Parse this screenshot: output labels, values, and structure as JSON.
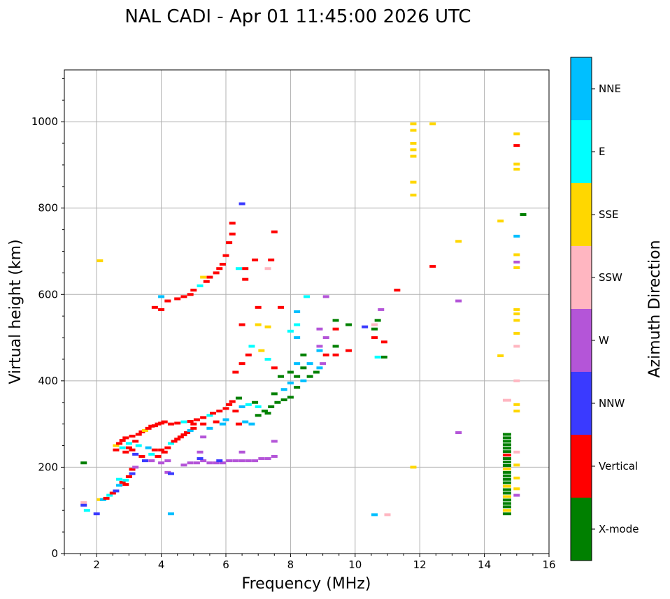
{
  "chart_data": {
    "type": "scatter",
    "title": "NAL CADI - Apr 01 11:45:00 2026 UTC",
    "xlabel": "Frequency (MHz)",
    "ylabel": "Virtual height (km)",
    "xlim": [
      1,
      16
    ],
    "ylim": [
      0,
      1120
    ],
    "xticks": [
      2,
      4,
      6,
      8,
      10,
      12,
      14,
      16
    ],
    "yticks": [
      0,
      200,
      400,
      600,
      800,
      1000
    ],
    "grid": true,
    "colorbar": {
      "label": "Azimuth Direction",
      "categories": [
        {
          "name": "X-mode",
          "color": "#008000"
        },
        {
          "name": "Vertical",
          "color": "#ff0000"
        },
        {
          "name": "NNW",
          "color": "#3a3aff"
        },
        {
          "name": "W",
          "color": "#b455d8"
        },
        {
          "name": "SSW",
          "color": "#ffb6c1"
        },
        {
          "name": "SSE",
          "color": "#ffd700"
        },
        {
          "name": "E",
          "color": "#00ffff"
        },
        {
          "name": "NNE",
          "color": "#00bfff"
        }
      ]
    },
    "point_format": [
      "frequency_MHz",
      "virtual_height_km",
      "azimuth_category_index"
    ],
    "points": [
      [
        1.6,
        118,
        4
      ],
      [
        1.6,
        112,
        2
      ],
      [
        1.7,
        100,
        6
      ],
      [
        2.0,
        92,
        2
      ],
      [
        2.1,
        125,
        5
      ],
      [
        2.2,
        125,
        7
      ],
      [
        2.3,
        128,
        1
      ],
      [
        2.4,
        135,
        6
      ],
      [
        2.5,
        140,
        1
      ],
      [
        2.6,
        145,
        2
      ],
      [
        2.7,
        158,
        7
      ],
      [
        2.8,
        165,
        1
      ],
      [
        2.9,
        170,
        6
      ],
      [
        3.0,
        178,
        1
      ],
      [
        3.1,
        185,
        2
      ],
      [
        3.1,
        195,
        1
      ],
      [
        3.2,
        200,
        3
      ],
      [
        2.7,
        172,
        6
      ],
      [
        2.9,
        160,
        1
      ],
      [
        2.6,
        250,
        5
      ],
      [
        2.6,
        240,
        1
      ],
      [
        2.7,
        255,
        1
      ],
      [
        2.8,
        262,
        1
      ],
      [
        2.8,
        245,
        6
      ],
      [
        2.9,
        235,
        1
      ],
      [
        2.9,
        268,
        1
      ],
      [
        3.0,
        255,
        6
      ],
      [
        3.0,
        245,
        1
      ],
      [
        3.1,
        272,
        1
      ],
      [
        3.1,
        240,
        1
      ],
      [
        3.2,
        260,
        1
      ],
      [
        3.2,
        230,
        2
      ],
      [
        3.3,
        276,
        1
      ],
      [
        3.3,
        250,
        6
      ],
      [
        3.4,
        282,
        1
      ],
      [
        3.4,
        225,
        1
      ],
      [
        3.5,
        285,
        5
      ],
      [
        3.5,
        215,
        2
      ],
      [
        3.6,
        290,
        1
      ],
      [
        3.6,
        245,
        7
      ],
      [
        3.7,
        295,
        1
      ],
      [
        3.7,
        230,
        6
      ],
      [
        3.8,
        296,
        1
      ],
      [
        3.8,
        240,
        1
      ],
      [
        3.9,
        300,
        1
      ],
      [
        3.9,
        225,
        1
      ],
      [
        4.0,
        302,
        1
      ],
      [
        4.0,
        240,
        1
      ],
      [
        4.1,
        235,
        1
      ],
      [
        4.2,
        245,
        1
      ],
      [
        4.3,
        255,
        6
      ],
      [
        4.4,
        260,
        1
      ],
      [
        4.5,
        265,
        1
      ],
      [
        4.6,
        270,
        1
      ],
      [
        4.7,
        275,
        1
      ],
      [
        4.8,
        280,
        1
      ],
      [
        4.9,
        285,
        7
      ],
      [
        5.0,
        290,
        1
      ],
      [
        4.1,
        305,
        1
      ],
      [
        4.3,
        300,
        1
      ],
      [
        4.5,
        302,
        1
      ],
      [
        4.7,
        305,
        6
      ],
      [
        4.9,
        306,
        1
      ],
      [
        5.0,
        300,
        1
      ],
      [
        5.1,
        310,
        1
      ],
      [
        5.3,
        315,
        1
      ],
      [
        5.5,
        320,
        6
      ],
      [
        5.6,
        325,
        1
      ],
      [
        5.8,
        330,
        1
      ],
      [
        6.0,
        336,
        1
      ],
      [
        6.1,
        345,
        1
      ],
      [
        6.2,
        352,
        1
      ],
      [
        6.4,
        360,
        0
      ],
      [
        5.9,
        300,
        7
      ],
      [
        5.5,
        290,
        7
      ],
      [
        5.3,
        300,
        1
      ],
      [
        5.7,
        305,
        1
      ],
      [
        6.0,
        310,
        7
      ],
      [
        6.3,
        330,
        1
      ],
      [
        6.5,
        340,
        7
      ],
      [
        6.7,
        345,
        6
      ],
      [
        6.9,
        350,
        0
      ],
      [
        7.0,
        340,
        6
      ],
      [
        7.2,
        330,
        0
      ],
      [
        7.4,
        340,
        0
      ],
      [
        7.6,
        350,
        0
      ],
      [
        7.8,
        356,
        0
      ],
      [
        8.0,
        362,
        0
      ],
      [
        8.2,
        385,
        0
      ],
      [
        8.4,
        400,
        7
      ],
      [
        8.6,
        410,
        0
      ],
      [
        8.8,
        420,
        0
      ],
      [
        8.9,
        430,
        7
      ],
      [
        9.0,
        440,
        3
      ],
      [
        7.0,
        320,
        0
      ],
      [
        7.3,
        325,
        0
      ],
      [
        6.6,
        305,
        7
      ],
      [
        6.4,
        300,
        1
      ],
      [
        6.8,
        300,
        7
      ],
      [
        7.5,
        370,
        0
      ],
      [
        7.8,
        380,
        7
      ],
      [
        8.0,
        395,
        7
      ],
      [
        8.2,
        410,
        0
      ],
      [
        8.4,
        430,
        0
      ],
      [
        8.6,
        440,
        7
      ],
      [
        6.3,
        420,
        1
      ],
      [
        6.5,
        440,
        1
      ],
      [
        6.7,
        460,
        1
      ],
      [
        6.8,
        480,
        6
      ],
      [
        7.1,
        470,
        5
      ],
      [
        7.3,
        450,
        6
      ],
      [
        7.5,
        430,
        1
      ],
      [
        7.7,
        410,
        0
      ],
      [
        8.0,
        420,
        0
      ],
      [
        8.2,
        440,
        7
      ],
      [
        8.4,
        460,
        0
      ],
      [
        8.2,
        500,
        7
      ],
      [
        8.2,
        560,
        7
      ],
      [
        8.9,
        470,
        7
      ],
      [
        8.9,
        480,
        3
      ],
      [
        8.9,
        520,
        3
      ],
      [
        9.1,
        500,
        3
      ],
      [
        9.1,
        460,
        1
      ],
      [
        9.4,
        460,
        1
      ],
      [
        9.4,
        480,
        0
      ],
      [
        9.4,
        520,
        1
      ],
      [
        9.4,
        540,
        0
      ],
      [
        9.8,
        470,
        1
      ],
      [
        9.8,
        530,
        0
      ],
      [
        10.3,
        525,
        2
      ],
      [
        10.6,
        520,
        0
      ],
      [
        10.6,
        500,
        1
      ],
      [
        10.7,
        540,
        0
      ],
      [
        10.8,
        565,
        3
      ],
      [
        10.9,
        490,
        1
      ],
      [
        10.9,
        455,
        0
      ],
      [
        10.7,
        455,
        6
      ],
      [
        10.6,
        530,
        4
      ],
      [
        8.5,
        595,
        6
      ],
      [
        9.1,
        595,
        3
      ],
      [
        6.5,
        530,
        1
      ],
      [
        7.0,
        530,
        5
      ],
      [
        7.3,
        525,
        5
      ],
      [
        8.0,
        515,
        6
      ],
      [
        8.2,
        530,
        6
      ],
      [
        7.0,
        570,
        1
      ],
      [
        7.7,
        570,
        1
      ],
      [
        4.7,
        205,
        3
      ],
      [
        4.9,
        210,
        3
      ],
      [
        5.1,
        210,
        3
      ],
      [
        5.3,
        215,
        3
      ],
      [
        5.5,
        210,
        3
      ],
      [
        5.7,
        210,
        3
      ],
      [
        5.9,
        210,
        3
      ],
      [
        6.1,
        215,
        3
      ],
      [
        6.3,
        215,
        3
      ],
      [
        6.5,
        215,
        3
      ],
      [
        6.7,
        215,
        3
      ],
      [
        6.9,
        215,
        3
      ],
      [
        7.1,
        220,
        3
      ],
      [
        7.3,
        220,
        3
      ],
      [
        7.5,
        225,
        3
      ],
      [
        5.2,
        220,
        2
      ],
      [
        5.8,
        215,
        2
      ],
      [
        4.2,
        215,
        3
      ],
      [
        4.0,
        210,
        3
      ],
      [
        3.7,
        215,
        3
      ],
      [
        4.2,
        188,
        3
      ],
      [
        4.3,
        185,
        2
      ],
      [
        7.5,
        260,
        3
      ],
      [
        6.5,
        235,
        3
      ],
      [
        5.3,
        270,
        3
      ],
      [
        5.2,
        235,
        3
      ],
      [
        3.8,
        570,
        1
      ],
      [
        4.0,
        565,
        1
      ],
      [
        4.2,
        585,
        1
      ],
      [
        4.5,
        590,
        1
      ],
      [
        4.7,
        595,
        1
      ],
      [
        4.9,
        600,
        1
      ],
      [
        5.0,
        610,
        1
      ],
      [
        5.2,
        620,
        6
      ],
      [
        5.4,
        630,
        1
      ],
      [
        5.5,
        640,
        1
      ],
      [
        5.7,
        650,
        1
      ],
      [
        5.8,
        660,
        1
      ],
      [
        5.9,
        670,
        1
      ],
      [
        6.0,
        690,
        1
      ],
      [
        6.1,
        720,
        1
      ],
      [
        6.2,
        740,
        1
      ],
      [
        6.2,
        765,
        1
      ],
      [
        6.4,
        660,
        6
      ],
      [
        6.6,
        660,
        1
      ],
      [
        6.6,
        635,
        1
      ],
      [
        6.9,
        680,
        1
      ],
      [
        7.3,
        660,
        4
      ],
      [
        7.4,
        680,
        1
      ],
      [
        7.5,
        745,
        1
      ],
      [
        6.5,
        810,
        2
      ],
      [
        4.0,
        595,
        7
      ],
      [
        5.3,
        640,
        5
      ],
      [
        2.1,
        678,
        5
      ],
      [
        11.3,
        610,
        1
      ],
      [
        12.4,
        665,
        1
      ],
      [
        13.2,
        723,
        5
      ],
      [
        13.2,
        585,
        3
      ],
      [
        13.2,
        280,
        3
      ],
      [
        11.8,
        995,
        5
      ],
      [
        11.8,
        980,
        5
      ],
      [
        11.8,
        950,
        5
      ],
      [
        11.8,
        935,
        5
      ],
      [
        11.8,
        920,
        5
      ],
      [
        11.8,
        860,
        5
      ],
      [
        11.8,
        830,
        5
      ],
      [
        12.4,
        995,
        5
      ],
      [
        11.8,
        200,
        5
      ],
      [
        10.6,
        90,
        7
      ],
      [
        11.0,
        90,
        4
      ],
      [
        4.3,
        92,
        7
      ],
      [
        1.6,
        210,
        0
      ],
      [
        14.5,
        770,
        5
      ],
      [
        14.5,
        458,
        5
      ],
      [
        14.7,
        355,
        4
      ],
      [
        14.7,
        92,
        0
      ],
      [
        14.7,
        100,
        5
      ],
      [
        14.7,
        108,
        0
      ],
      [
        14.7,
        116,
        0
      ],
      [
        14.7,
        124,
        0
      ],
      [
        14.7,
        132,
        5
      ],
      [
        14.7,
        140,
        0
      ],
      [
        14.7,
        148,
        0
      ],
      [
        14.7,
        156,
        5
      ],
      [
        14.7,
        164,
        0
      ],
      [
        14.7,
        172,
        0
      ],
      [
        14.7,
        180,
        0
      ],
      [
        14.7,
        188,
        0
      ],
      [
        14.7,
        196,
        5
      ],
      [
        14.7,
        204,
        0
      ],
      [
        14.7,
        212,
        0
      ],
      [
        14.7,
        220,
        0
      ],
      [
        14.7,
        228,
        1
      ],
      [
        14.7,
        236,
        0
      ],
      [
        14.7,
        244,
        0
      ],
      [
        14.7,
        252,
        0
      ],
      [
        14.7,
        260,
        0
      ],
      [
        14.7,
        268,
        0
      ],
      [
        14.7,
        276,
        0
      ],
      [
        15.0,
        972,
        5
      ],
      [
        15.0,
        945,
        1
      ],
      [
        15.0,
        902,
        5
      ],
      [
        15.0,
        890,
        5
      ],
      [
        15.0,
        735,
        7
      ],
      [
        15.0,
        692,
        5
      ],
      [
        15.0,
        675,
        3
      ],
      [
        15.0,
        662,
        5
      ],
      [
        15.0,
        565,
        5
      ],
      [
        15.0,
        555,
        5
      ],
      [
        15.0,
        540,
        5
      ],
      [
        15.0,
        510,
        5
      ],
      [
        15.0,
        480,
        4
      ],
      [
        15.0,
        400,
        4
      ],
      [
        15.0,
        345,
        5
      ],
      [
        15.0,
        330,
        5
      ],
      [
        15.0,
        235,
        4
      ],
      [
        15.0,
        205,
        5
      ],
      [
        15.0,
        175,
        5
      ],
      [
        15.0,
        150,
        5
      ],
      [
        15.0,
        135,
        3
      ],
      [
        15.2,
        785,
        0
      ]
    ]
  }
}
